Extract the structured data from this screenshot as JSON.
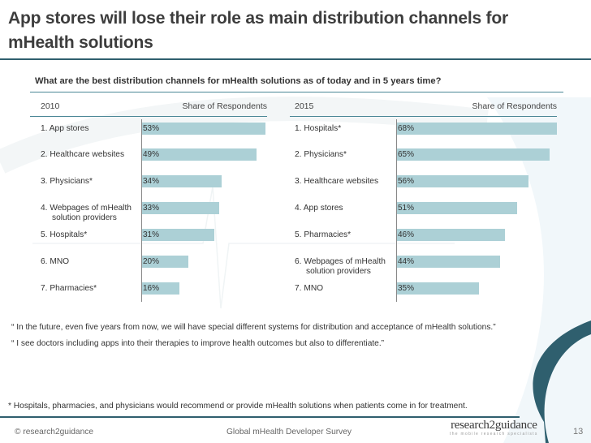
{
  "title": "App stores will lose their role as main distribution channels for mHealth solutions",
  "question": "What are the best distribution channels for mHealth solutions as of today and in 5 years time?",
  "colors": {
    "bar": "#acd0d6",
    "rule": "#2f5f6e",
    "accent_rule": "#4b8796"
  },
  "chart_data": [
    {
      "type": "bar",
      "orientation": "horizontal",
      "title": "2010",
      "xlabel": "Share of Respondents",
      "unit": "%",
      "categories": [
        "1. App stores",
        "2. Healthcare websites",
        "3. Physicians*",
        "4. Webpages of mHealth solution providers",
        "5. Hospitals*",
        "6. MNO",
        "7. Pharmacies*"
      ],
      "category_lines": [
        [
          "1. App stores"
        ],
        [
          "2. Healthcare websites"
        ],
        [
          "3. Physicians*"
        ],
        [
          "4. Webpages of mHealth",
          "solution providers"
        ],
        [
          "5. Hospitals*"
        ],
        [
          "6. MNO"
        ],
        [
          "7. Pharmacies*"
        ]
      ],
      "values": [
        53,
        49,
        34,
        33,
        31,
        20,
        16
      ],
      "value_labels": [
        "53%",
        "49%",
        "34%",
        "33%",
        "31%",
        "20%",
        "16%"
      ],
      "xlim": [
        0,
        53
      ],
      "grid": false
    },
    {
      "type": "bar",
      "orientation": "horizontal",
      "title": "2015",
      "xlabel": "Share of Respondents",
      "unit": "%",
      "categories": [
        "1. Hospitals*",
        "2. Physicians*",
        "3. Healthcare websites",
        "4. App stores",
        "5. Pharmacies*",
        "6. Webpages of mHealth solution providers",
        "7. MNO"
      ],
      "category_lines": [
        [
          "1. Hospitals*"
        ],
        [
          "2. Physicians*"
        ],
        [
          "3. Healthcare websites"
        ],
        [
          "4. App stores"
        ],
        [
          "5. Pharmacies*"
        ],
        [
          "6. Webpages of mHealth",
          "solution providers"
        ],
        [
          "7. MNO"
        ]
      ],
      "values": [
        68,
        65,
        56,
        51,
        46,
        44,
        35
      ],
      "value_labels": [
        "68%",
        "65%",
        "56%",
        "51%",
        "46%",
        "44%",
        "35%"
      ],
      "xlim": [
        0,
        68
      ],
      "grid": false
    }
  ],
  "quotes": [
    "“ In the future, even five years from now, we will have special different systems for distribution and acceptance of mHealth solutions.”",
    "“ I see doctors including apps into their therapies to improve health outcomes but also to differentiate.”"
  ],
  "footnote": "* Hospitals, pharmacies, and physicians would recommend or provide mHealth solutions when patients come in for treatment.",
  "footer": {
    "copyright": "© research2guidance",
    "survey": "Global mHealth Developer Survey",
    "logo_main": "research2guidance",
    "logo_sub": "the mobile research specialists",
    "page_number": "13"
  }
}
